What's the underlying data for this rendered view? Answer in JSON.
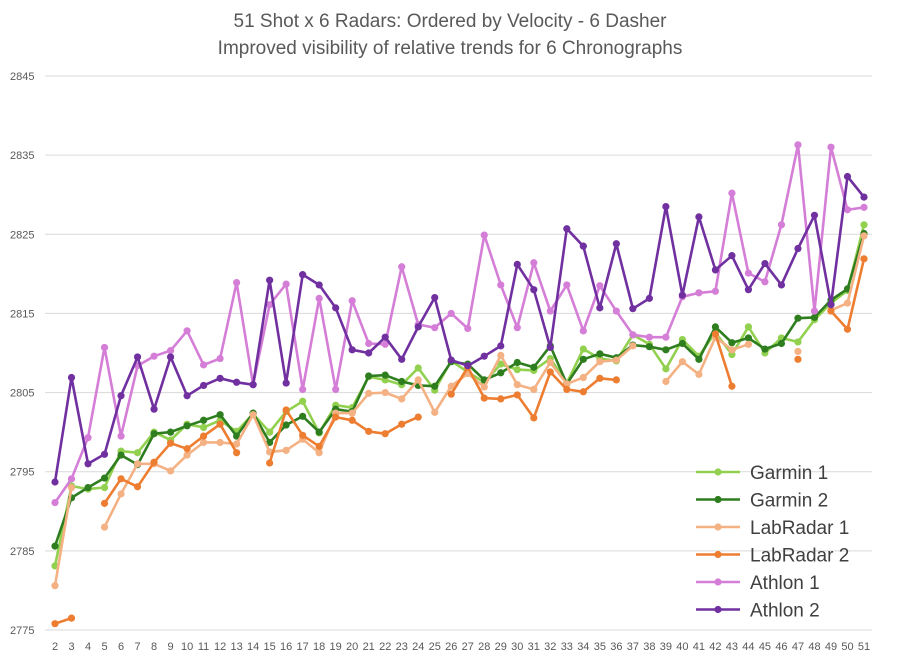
{
  "chart_data": {
    "type": "line",
    "title": "51 Shot x 6 Radars: Ordered by Velocity - 6 Dasher",
    "subtitle": "Improved visibility of relative trends for 6 Chronographs",
    "xlabel": "",
    "ylabel": "",
    "ylim": [
      2775,
      2845
    ],
    "yticks": [
      2775,
      2785,
      2795,
      2805,
      2815,
      2825,
      2835,
      2845
    ],
    "grid": true,
    "legend_position": "bottom-right",
    "x": [
      2,
      3,
      4,
      5,
      6,
      7,
      8,
      9,
      10,
      11,
      12,
      13,
      14,
      15,
      16,
      17,
      18,
      19,
      20,
      21,
      22,
      23,
      24,
      25,
      26,
      27,
      28,
      29,
      30,
      31,
      32,
      33,
      34,
      35,
      36,
      37,
      38,
      39,
      40,
      41,
      42,
      43,
      44,
      45,
      46,
      47,
      48,
      49,
      50,
      51
    ],
    "series": [
      {
        "name": "Garmin 1",
        "color": "#92d050",
        "values": [
          2783.1,
          2793.2,
          2792.8,
          2793.0,
          2797.6,
          2797.4,
          2800.0,
          2799.0,
          2801.0,
          2800.6,
          2801.5,
          2800.1,
          2802.3,
          2800.0,
          2802.6,
          2803.9,
          2799.9,
          2803.4,
          2803.1,
          2807.0,
          2806.6,
          2806.0,
          2808.1,
          2805.3,
          2809.0,
          2807.6,
          2806.3,
          2808.6,
          2807.9,
          2807.8,
          2809.3,
          2806.2,
          2810.5,
          2809.3,
          2809.0,
          2812.3,
          2811.1,
          2808.0,
          2811.7,
          2809.6,
          2812.6,
          2809.8,
          2813.3,
          2810.0,
          2811.9,
          2811.4,
          2814.2,
          2816.3,
          2817.9,
          2826.2
        ]
      },
      {
        "name": "Garmin 2",
        "color": "#2e7d1f",
        "values": [
          2785.6,
          2791.7,
          2793.0,
          2794.2,
          2797.1,
          2795.9,
          2799.8,
          2800.0,
          2800.8,
          2801.5,
          2802.2,
          2799.5,
          2802.4,
          2798.7,
          2800.9,
          2802.0,
          2800.0,
          2802.9,
          2802.6,
          2807.1,
          2807.2,
          2806.4,
          2805.9,
          2805.8,
          2808.9,
          2808.6,
          2806.6,
          2807.5,
          2808.8,
          2808.2,
          2810.9,
          2806.1,
          2809.2,
          2809.9,
          2809.4,
          2811.0,
          2810.8,
          2810.4,
          2811.2,
          2809.2,
          2813.3,
          2811.3,
          2811.9,
          2810.5,
          2811.2,
          2814.4,
          2814.5,
          2816.7,
          2818.1,
          2825.1
        ]
      },
      {
        "name": "LabRadar 1",
        "color": "#f4b183",
        "values": [
          2780.6,
          2793.0,
          null,
          2788.0,
          2792.2,
          2796.0,
          2796.0,
          2795.1,
          2797.1,
          2798.7,
          2798.7,
          2798.5,
          2802.2,
          2797.5,
          2797.7,
          2799.1,
          2797.4,
          2802.4,
          2802.4,
          2804.9,
          2805.0,
          2804.2,
          2806.6,
          2802.5,
          2805.8,
          2807.4,
          2805.7,
          2809.7,
          2806.0,
          2805.4,
          2808.8,
          2806.1,
          2806.9,
          2808.9,
          2809.1,
          2810.9,
          null,
          2806.4,
          2808.9,
          2807.3,
          2812.0,
          2810.4,
          2811.1,
          null,
          null,
          2810.2,
          null,
          2815.4,
          2816.3,
          2824.8
        ]
      },
      {
        "name": "LabRadar 2",
        "color": "#ed7d31",
        "values": [
          2775.8,
          2776.5,
          null,
          2791.0,
          2794.1,
          2793.1,
          2796.2,
          2798.6,
          2797.9,
          2799.5,
          2801.0,
          2797.4,
          null,
          2796.1,
          2802.8,
          2799.6,
          2798.2,
          2801.9,
          2801.5,
          2800.1,
          2799.8,
          2801.0,
          2801.9,
          null,
          2804.8,
          2808.2,
          2804.3,
          2804.2,
          2804.7,
          2801.8,
          2807.6,
          2805.4,
          2805.1,
          2806.8,
          2806.6,
          null,
          null,
          null,
          null,
          null,
          2812.4,
          2805.8,
          null,
          null,
          null,
          2809.2,
          null,
          2815.3,
          2813.0,
          2821.9
        ]
      },
      {
        "name": "Athlon 1",
        "color": "#d57ed7",
        "values": [
          2791.1,
          2794.1,
          2799.3,
          2810.7,
          2799.5,
          2808.4,
          2809.6,
          2810.3,
          2812.8,
          2808.5,
          2809.3,
          2818.9,
          2806.0,
          2816.1,
          2818.7,
          2805.4,
          2816.9,
          2805.4,
          2816.6,
          2811.2,
          2811.1,
          2820.9,
          2813.6,
          2813.2,
          2815.0,
          2813.1,
          2824.9,
          2818.6,
          2813.2,
          2821.4,
          2815.3,
          2818.6,
          2812.8,
          2818.5,
          2815.3,
          2812.3,
          2812.0,
          2812.0,
          2817.1,
          2817.6,
          2817.8,
          2830.2,
          2820.1,
          2819.0,
          2826.2,
          2836.3,
          2815.3,
          2836.0,
          2828.1,
          2828.4
        ]
      },
      {
        "name": "Athlon 2",
        "color": "#7030a0",
        "values": [
          2793.7,
          2806.9,
          2796.0,
          2797.2,
          2804.6,
          2809.5,
          2802.9,
          2809.5,
          2804.6,
          2805.9,
          2806.8,
          2806.3,
          2806.0,
          2819.2,
          2806.2,
          2819.9,
          2818.6,
          2815.7,
          2810.4,
          2810.0,
          2812.0,
          2809.2,
          2813.3,
          2817.0,
          2809.1,
          2808.4,
          2809.6,
          2810.9,
          2821.2,
          2818.0,
          2810.7,
          2825.7,
          2823.5,
          2815.7,
          2823.8,
          2815.6,
          2816.9,
          2828.5,
          2817.3,
          2827.2,
          2820.5,
          2822.3,
          2818.0,
          2821.3,
          2818.6,
          2823.2,
          2827.4,
          2816.1,
          2832.3,
          2829.7
        ]
      }
    ]
  }
}
